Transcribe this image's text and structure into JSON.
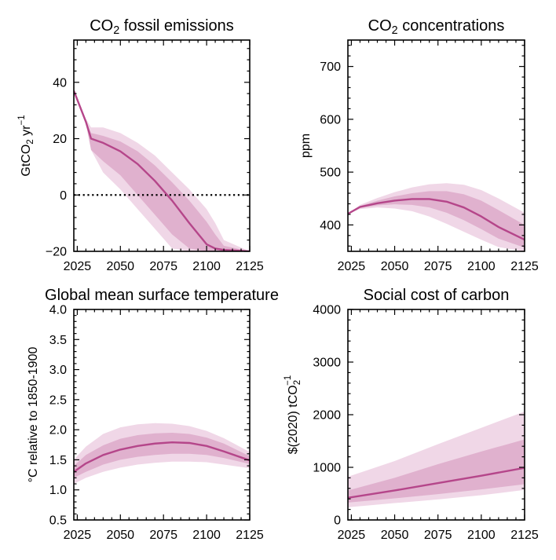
{
  "colors": {
    "median": "#b5468a",
    "band_outer": "rgba(202,112,168,0.28)",
    "band_inner": "rgba(190,90,150,0.30)",
    "zero_line": "#000000"
  },
  "chart_data": [
    {
      "type": "area",
      "title_main": "CO",
      "title_sub": "2",
      "title_rest": " fossil emissions",
      "ylabel_main": "GtCO",
      "ylabel_sub": "2",
      "ylabel_rest": " yr",
      "ylabel_sup": "−1",
      "xlim": [
        2023,
        2125
      ],
      "ylim": [
        -20,
        55
      ],
      "xticks": [
        2025,
        2050,
        2075,
        2100,
        2125
      ],
      "yticks": [
        -20,
        0,
        20,
        40
      ],
      "zero_line": true,
      "x": [
        2023,
        2030,
        2033,
        2040,
        2050,
        2060,
        2070,
        2080,
        2090,
        2100,
        2105,
        2110,
        2125
      ],
      "median": [
        37,
        26,
        20,
        18.5,
        15.5,
        11,
        5,
        -2,
        -10,
        -17.5,
        -19,
        -19.5,
        -20
      ],
      "inner_low": [
        37,
        26,
        16,
        12,
        7,
        0,
        -7,
        -14,
        -19,
        -20,
        -20,
        -20,
        -20
      ],
      "inner_high": [
        37,
        26,
        22,
        21,
        19,
        15.5,
        10.5,
        4.5,
        -2,
        -9.5,
        -14,
        -18,
        -20
      ],
      "outer_low": [
        37,
        25,
        16,
        8,
        2,
        -5,
        -12,
        -19,
        -20,
        -20,
        -20,
        -20,
        -20
      ],
      "outer_high": [
        37,
        27,
        24,
        24,
        22,
        18.5,
        14,
        8,
        2,
        -5,
        -10,
        -16,
        -20
      ]
    },
    {
      "type": "area",
      "title_main": "CO",
      "title_sub": "2",
      "title_rest": " concentrations",
      "ylabel_main": "ppm",
      "xlim": [
        2023,
        2125
      ],
      "ylim": [
        350,
        750
      ],
      "xticks": [
        2025,
        2050,
        2075,
        2100,
        2125
      ],
      "yticks": [
        400,
        500,
        600,
        700
      ],
      "x": [
        2023,
        2030,
        2040,
        2050,
        2060,
        2070,
        2080,
        2090,
        2100,
        2110,
        2125
      ],
      "median": [
        421,
        434,
        441,
        446,
        449,
        449,
        444,
        433,
        416,
        396,
        372
      ],
      "inner_low": [
        421,
        432,
        437,
        439,
        438,
        433,
        423,
        409,
        392,
        374,
        357
      ],
      "inner_high": [
        421,
        436,
        446,
        454,
        460,
        464,
        464,
        458,
        446,
        428,
        400
      ],
      "outer_low": [
        421,
        430,
        433,
        431,
        426,
        416,
        402,
        387,
        372,
        358,
        350
      ],
      "outer_high": [
        421,
        438,
        451,
        462,
        471,
        477,
        479,
        476,
        466,
        450,
        423
      ]
    },
    {
      "type": "area",
      "title_main": "Global mean surface temperature",
      "ylabel_main": "°C relative to 1850-1900",
      "xlim": [
        2023,
        2125
      ],
      "ylim": [
        0.5,
        4.0
      ],
      "xticks": [
        2025,
        2050,
        2075,
        2100,
        2125
      ],
      "yticks": [
        0.5,
        1.0,
        1.5,
        2.0,
        2.5,
        3.0,
        3.5,
        4.0
      ],
      "tick_decimals": 1,
      "x": [
        2023,
        2030,
        2040,
        2050,
        2060,
        2070,
        2080,
        2090,
        2100,
        2110,
        2125
      ],
      "median": [
        1.3,
        1.44,
        1.58,
        1.67,
        1.73,
        1.77,
        1.79,
        1.78,
        1.73,
        1.64,
        1.49
      ],
      "inner_low": [
        1.2,
        1.3,
        1.42,
        1.5,
        1.55,
        1.58,
        1.6,
        1.6,
        1.58,
        1.53,
        1.43
      ],
      "inner_high": [
        1.4,
        1.58,
        1.74,
        1.85,
        1.91,
        1.94,
        1.95,
        1.93,
        1.87,
        1.77,
        1.56
      ],
      "outer_low": [
        1.1,
        1.2,
        1.3,
        1.37,
        1.42,
        1.45,
        1.47,
        1.47,
        1.46,
        1.42,
        1.36
      ],
      "outer_high": [
        1.5,
        1.72,
        1.93,
        2.04,
        2.09,
        2.11,
        2.1,
        2.06,
        1.98,
        1.86,
        1.63
      ]
    },
    {
      "type": "area",
      "title_main": "Social cost of carbon",
      "ylabel_main": "$(2020) tCO",
      "ylabel_sub": "2",
      "ylabel_sup": "−1",
      "xlim": [
        2023,
        2125
      ],
      "ylim": [
        0,
        4000
      ],
      "xticks": [
        2025,
        2050,
        2075,
        2100,
        2125
      ],
      "yticks": [
        0,
        1000,
        2000,
        3000,
        4000
      ],
      "x": [
        2023,
        2050,
        2075,
        2100,
        2125
      ],
      "median": [
        420,
        560,
        700,
        840,
        990
      ],
      "inner_low": [
        330,
        410,
        490,
        580,
        680
      ],
      "inner_high": [
        560,
        800,
        1060,
        1300,
        1530
      ],
      "outer_low": [
        240,
        320,
        390,
        470,
        570
      ],
      "outer_high": [
        820,
        1120,
        1440,
        1750,
        2060
      ]
    }
  ]
}
